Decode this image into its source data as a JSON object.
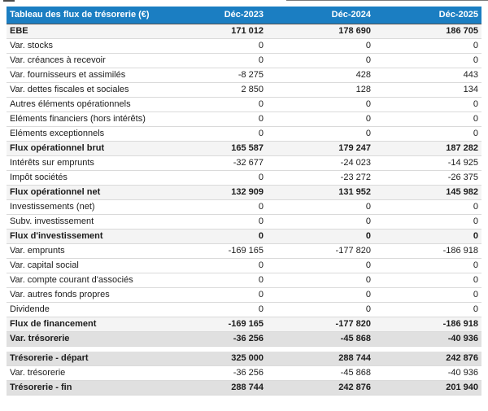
{
  "colors": {
    "header_bg": "#1b7ec2",
    "header_text": "#ffffff",
    "subtotal_row_bg": "#f4f4f4",
    "total_row_bg": "#e0e0e0"
  },
  "table": {
    "title": "Tableau des flux de trésorerie (€)",
    "columns": [
      "Déc-2023",
      "Déc-2024",
      "Déc-2025"
    ],
    "body_rows": [
      {
        "label": "EBE",
        "values": [
          "171 012",
          "178 690",
          "186 705"
        ],
        "style": "subtotal"
      },
      {
        "label": "Var. stocks",
        "values": [
          "0",
          "0",
          "0"
        ],
        "style": "normal"
      },
      {
        "label": "Var. créances à recevoir",
        "values": [
          "0",
          "0",
          "0"
        ],
        "style": "normal"
      },
      {
        "label": "Var. fournisseurs et assimilés",
        "values": [
          "-8 275",
          "428",
          "443"
        ],
        "style": "normal"
      },
      {
        "label": "Var. dettes fiscales et sociales",
        "values": [
          "2 850",
          "128",
          "134"
        ],
        "style": "normal"
      },
      {
        "label": "Autres éléments opérationnels",
        "values": [
          "0",
          "0",
          "0"
        ],
        "style": "normal"
      },
      {
        "label": "Eléments financiers (hors intérêts)",
        "values": [
          "0",
          "0",
          "0"
        ],
        "style": "normal"
      },
      {
        "label": "Eléments exceptionnels",
        "values": [
          "0",
          "0",
          "0"
        ],
        "style": "normal"
      },
      {
        "label": "Flux opérationnel brut",
        "values": [
          "165 587",
          "179 247",
          "187 282"
        ],
        "style": "subtotal"
      },
      {
        "label": "Intérêts sur emprunts",
        "values": [
          "-32 677",
          "-24 023",
          "-14 925"
        ],
        "style": "normal"
      },
      {
        "label": "Impôt sociétés",
        "values": [
          "0",
          "-23 272",
          "-26 375"
        ],
        "style": "normal"
      },
      {
        "label": "Flux opérationnel net",
        "values": [
          "132 909",
          "131 952",
          "145 982"
        ],
        "style": "subtotal"
      },
      {
        "label": "Investissements (net)",
        "values": [
          "0",
          "0",
          "0"
        ],
        "style": "normal"
      },
      {
        "label": "Subv. investissement",
        "values": [
          "0",
          "0",
          "0"
        ],
        "style": "normal"
      },
      {
        "label": "Flux d'investissement",
        "values": [
          "0",
          "0",
          "0"
        ],
        "style": "subtotal"
      },
      {
        "label": "Var. emprunts",
        "values": [
          "-169 165",
          "-177 820",
          "-186 918"
        ],
        "style": "normal"
      },
      {
        "label": "Var. capital social",
        "values": [
          "0",
          "0",
          "0"
        ],
        "style": "normal"
      },
      {
        "label": "Var. compte courant d'associés",
        "values": [
          "0",
          "0",
          "0"
        ],
        "style": "normal"
      },
      {
        "label": "Var. autres fonds propres",
        "values": [
          "0",
          "0",
          "0"
        ],
        "style": "normal"
      },
      {
        "label": "Dividende",
        "values": [
          "0",
          "0",
          "0"
        ],
        "style": "normal"
      },
      {
        "label": "Flux de financement",
        "values": [
          "-169 165",
          "-177 820",
          "-186 918"
        ],
        "style": "subtotal"
      },
      {
        "label": "Var. trésorerie",
        "values": [
          "-36 256",
          "-45 868",
          "-40 936"
        ],
        "style": "total"
      }
    ],
    "closing_rows": [
      {
        "label": "Trésorerie - départ",
        "values": [
          "325 000",
          "288 744",
          "242 876"
        ],
        "style": "total"
      },
      {
        "label": "Var. trésorerie",
        "values": [
          "-36 256",
          "-45 868",
          "-40 936"
        ],
        "style": "normal"
      },
      {
        "label": "Trésorerie - fin",
        "values": [
          "288 744",
          "242 876",
          "201 940"
        ],
        "style": "total"
      }
    ]
  }
}
